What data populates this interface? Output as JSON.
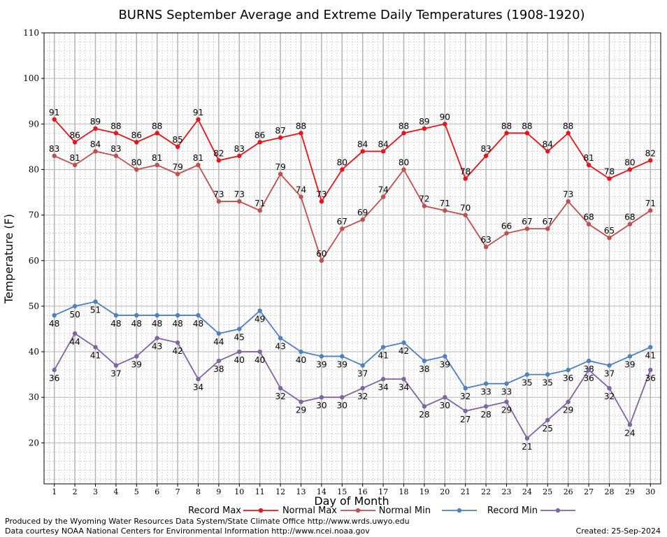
{
  "footer": {
    "produced_by": "Produced by the Wyoming Water Resources Data System/State Climate Office http://www.wrds.uwyo.edu",
    "courtesy": "Data courtesy NOAA National Centers for Environmental Information http://www.ncei.noaa.gov",
    "created": "Created:  25-Sep-2024"
  },
  "colors": {
    "record_max": "#e8141c",
    "normal_max": "#c0504d",
    "normal_min": "#4f81bd",
    "record_min": "#8064a2",
    "grid": "#b4b4b4",
    "grid_minor": "#d4d4d4"
  },
  "chart_data": {
    "type": "line",
    "title": "BURNS September Average and Extreme Daily Temperatures (1908-1920)",
    "xlabel": "Day of Month",
    "ylabel": "Temperature (F)",
    "xlim": [
      0.5,
      30.5
    ],
    "ylim": [
      11,
      110
    ],
    "y_ticks": [
      20,
      30,
      40,
      50,
      60,
      70,
      80,
      90,
      100,
      110
    ],
    "grid": true,
    "legend_position": "bottom",
    "x": [
      1,
      2,
      3,
      4,
      5,
      6,
      7,
      8,
      9,
      10,
      11,
      12,
      13,
      14,
      15,
      16,
      17,
      18,
      19,
      20,
      21,
      22,
      23,
      24,
      25,
      26,
      27,
      28,
      29,
      30
    ],
    "series": [
      {
        "name": "Record Max",
        "color": "#e8141c",
        "label_pos": "above",
        "values": [
          91,
          86,
          89,
          88,
          86,
          88,
          85,
          91,
          82,
          83,
          86,
          87,
          88,
          73,
          80,
          84,
          84,
          88,
          89,
          90,
          78,
          83,
          88,
          88,
          84,
          88,
          81,
          78,
          80,
          82
        ]
      },
      {
        "name": "Normal Max",
        "color": "#c0504d",
        "label_pos": "above",
        "values": [
          83,
          81,
          84,
          83,
          80,
          81,
          79,
          81,
          73,
          73,
          71,
          79,
          74,
          60,
          67,
          69,
          74,
          80,
          72,
          71,
          70,
          63,
          66,
          67,
          67,
          73,
          68,
          65,
          68,
          71
        ]
      },
      {
        "name": "Normal Min",
        "color": "#4f81bd",
        "label_pos": "below",
        "values": [
          48,
          50,
          51,
          48,
          48,
          48,
          48,
          48,
          44,
          45,
          49,
          43,
          40,
          39,
          39,
          37,
          41,
          42,
          38,
          39,
          32,
          33,
          33,
          35,
          35,
          36,
          38,
          37,
          39,
          41
        ]
      },
      {
        "name": "Record Min",
        "color": "#8064a2",
        "label_pos": "below",
        "values": [
          36,
          44,
          41,
          37,
          39,
          43,
          42,
          34,
          38,
          40,
          40,
          32,
          29,
          30,
          30,
          32,
          34,
          34,
          28,
          30,
          27,
          28,
          29,
          21,
          25,
          29,
          36,
          32,
          24,
          36
        ]
      }
    ]
  }
}
